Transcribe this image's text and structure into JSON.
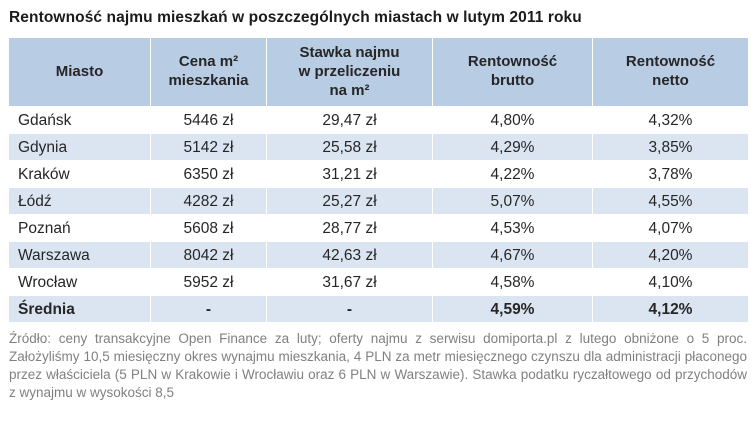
{
  "title": "Rentowność najmu mieszkań w poszczególnych miastach w lutym 2011 roku",
  "footnote": "Źródło: ceny transakcyjne Open Finance za luty; oferty najmu z serwisu domiporta.pl z lutego obniżone o 5 proc. Założyliśmy 10,5 miesięczny okres wynajmu mieszkania, 4 PLN za metr miesięcznego czynszu dla administracji płaconego przez właściciela (5 PLN w Krakowie i Wrocławiu oraz 6 PLN w Warszawie). Stawka podatku ryczałtowego od przychodów z wynajmu w wysokości 8,5",
  "colors": {
    "header_bg": "#b8cce4",
    "alt_row_bg": "#dbe5f1",
    "text": "#262626",
    "footnote_text": "#808080"
  },
  "chart_data": {
    "type": "table",
    "title": "Rentowność najmu mieszkań w poszczególnych miastach w lutym 2011 roku",
    "columns": [
      "Miasto",
      "Cena m²\nmieszkania",
      "Stawka najmu\nw przeliczeniu\nna m²",
      "Rentowność\nbrutto",
      "Rentowność\nnetto"
    ],
    "rows": [
      [
        "Gdańsk",
        "5446 zł",
        "29,47 zł",
        "4,80%",
        "4,32%"
      ],
      [
        "Gdynia",
        "5142 zł",
        "25,58 zł",
        "4,29%",
        "3,85%"
      ],
      [
        "Kraków",
        "6350 zł",
        "31,21 zł",
        "4,22%",
        "3,78%"
      ],
      [
        "Łódź",
        "4282 zł",
        "25,27 zł",
        "5,07%",
        "4,55%"
      ],
      [
        "Poznań",
        "5608 zł",
        "28,77 zł",
        "4,53%",
        "4,07%"
      ],
      [
        "Warszawa",
        "8042 zł",
        "42,63 zł",
        "4,67%",
        "4,20%"
      ],
      [
        "Wrocław",
        "5952 zł",
        "31,67 zł",
        "4,58%",
        "4,10%"
      ],
      [
        "Średnia",
        "-",
        "-",
        "4,59%",
        "4,12%"
      ]
    ],
    "average_row_label": "Średnia",
    "layout": {
      "striped": true,
      "header_position": "top",
      "grid": "white-separators"
    }
  }
}
